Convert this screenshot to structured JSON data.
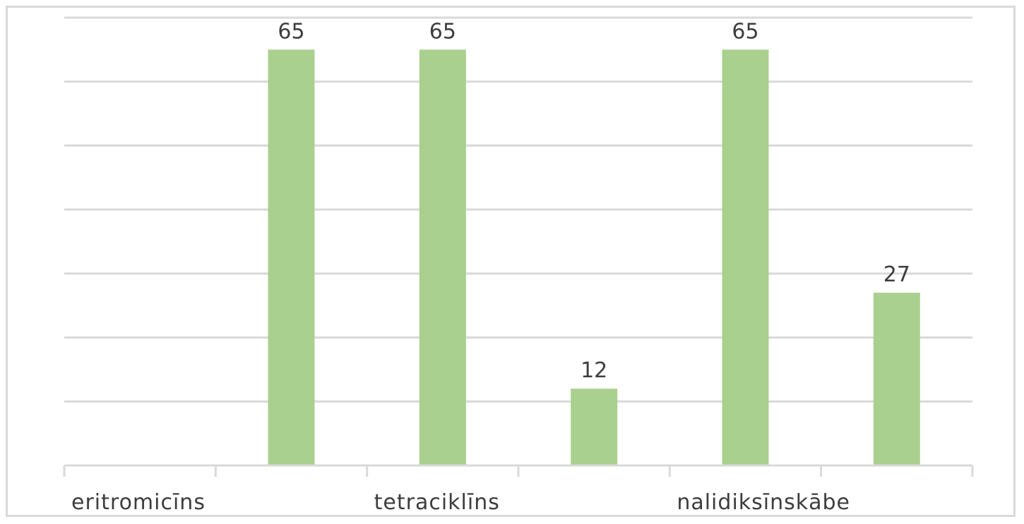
{
  "chart_data": {
    "type": "bar",
    "categories": [
      "eritromicīns",
      "",
      "tetraciklīns",
      "",
      "nalidiksīnskābe",
      ""
    ],
    "values": [
      0,
      65,
      65,
      12,
      65,
      27
    ],
    "data_labels": [
      "",
      "65",
      "65",
      "12",
      "65",
      "27"
    ],
    "ylim": [
      0,
      70
    ],
    "y_grid_step": 10,
    "grid": true,
    "legend": "none",
    "bar_color": "#a9d08e",
    "grid_color": "#d9d9d9",
    "axis_color": "#d9d9d9"
  }
}
